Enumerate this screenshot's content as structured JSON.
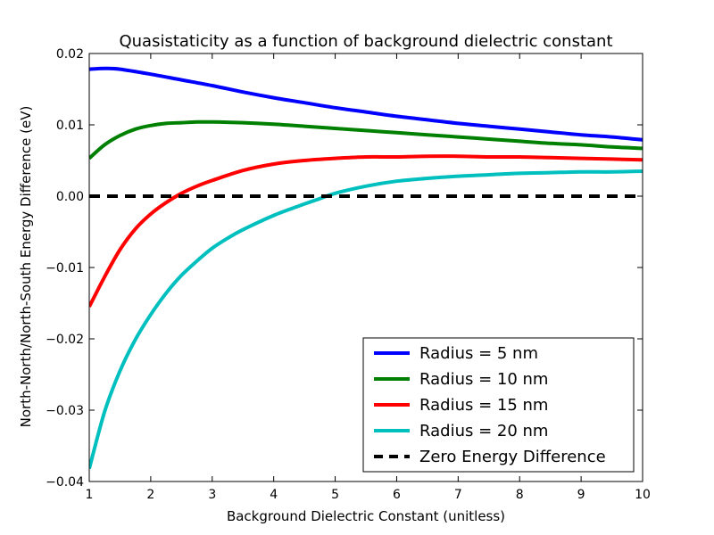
{
  "chart_data": {
    "type": "line",
    "title": "Quasistaticity as a function of background dielectric constant",
    "xlabel": "Background Dielectric Constant (unitless)",
    "ylabel": "North-North/North-South Energy Difference (eV)",
    "xlim": [
      1,
      10
    ],
    "ylim": [
      -0.04,
      0.02
    ],
    "xticks": [
      1,
      2,
      3,
      4,
      5,
      6,
      7,
      8,
      9,
      10
    ],
    "xtick_labels": [
      "1",
      "2",
      "3",
      "4",
      "5",
      "6",
      "7",
      "8",
      "9",
      "10"
    ],
    "yticks": [
      -0.04,
      -0.03,
      -0.02,
      -0.01,
      0.0,
      0.01,
      0.02
    ],
    "ytick_labels": [
      "−0.04",
      "−0.03",
      "−0.02",
      "−0.01",
      "0.00",
      "0.01",
      "0.02"
    ],
    "grid": false,
    "legend_position": "lower-right",
    "series": [
      {
        "name": "Radius = 5 nm",
        "color": "#0000ff",
        "style": "solid",
        "x": [
          1,
          1.25,
          1.5,
          2,
          2.5,
          3,
          3.5,
          4,
          4.5,
          5,
          5.5,
          6,
          6.5,
          7,
          7.5,
          8,
          8.5,
          9,
          9.5,
          10
        ],
        "y": [
          0.0178,
          0.0179,
          0.0178,
          0.0171,
          0.0163,
          0.0155,
          0.0146,
          0.0138,
          0.0131,
          0.0124,
          0.0118,
          0.0112,
          0.0107,
          0.0102,
          0.0098,
          0.0094,
          0.009,
          0.0086,
          0.0083,
          0.0079
        ]
      },
      {
        "name": "Radius = 10 nm",
        "color": "#008000",
        "style": "solid",
        "x": [
          1,
          1.25,
          1.5,
          1.75,
          2,
          2.25,
          2.5,
          2.75,
          3,
          3.5,
          4,
          4.5,
          5,
          5.5,
          6,
          6.5,
          7,
          7.5,
          8,
          8.5,
          9,
          9.5,
          10
        ],
        "y": [
          0.0053,
          0.0072,
          0.0085,
          0.0094,
          0.0099,
          0.0102,
          0.0103,
          0.0104,
          0.0104,
          0.0103,
          0.0101,
          0.0098,
          0.0095,
          0.0092,
          0.0089,
          0.0086,
          0.0083,
          0.008,
          0.0077,
          0.0074,
          0.0072,
          0.0069,
          0.0067
        ]
      },
      {
        "name": "Radius = 15 nm",
        "color": "#ff0000",
        "style": "solid",
        "x": [
          1,
          1.25,
          1.5,
          1.75,
          2,
          2.25,
          2.5,
          2.75,
          3,
          3.5,
          4,
          4.5,
          5,
          5.5,
          6,
          6.5,
          7,
          7.5,
          8,
          8.5,
          9,
          9.5,
          10
        ],
        "y": [
          -0.0155,
          -0.0113,
          -0.0075,
          -0.0046,
          -0.0025,
          -0.0009,
          0.0004,
          0.0014,
          0.0022,
          0.0036,
          0.0045,
          0.005,
          0.0053,
          0.0055,
          0.0055,
          0.0056,
          0.0056,
          0.0055,
          0.0055,
          0.0054,
          0.0053,
          0.0052,
          0.0051
        ]
      },
      {
        "name": "Radius = 20 nm",
        "color": "#00bfbf",
        "style": "solid",
        "x": [
          1,
          1.25,
          1.5,
          1.75,
          2,
          2.25,
          2.5,
          2.75,
          3,
          3.25,
          3.5,
          4,
          4.5,
          4.7,
          5,
          5.5,
          6,
          6.5,
          7,
          7.5,
          8,
          8.5,
          9,
          9.5,
          10
        ],
        "y": [
          -0.0382,
          -0.0302,
          -0.0245,
          -0.0201,
          -0.0166,
          -0.0136,
          -0.0111,
          -0.0091,
          -0.0073,
          -0.0059,
          -0.0047,
          -0.0027,
          -0.0011,
          -0.0005,
          0.0004,
          0.0014,
          0.0021,
          0.0025,
          0.0028,
          0.003,
          0.0032,
          0.0033,
          0.0034,
          0.0034,
          0.0035
        ]
      },
      {
        "name": "Zero Energy Difference",
        "color": "#000000",
        "style": "dashed",
        "x": [
          1,
          10
        ],
        "y": [
          0,
          0
        ]
      }
    ]
  }
}
